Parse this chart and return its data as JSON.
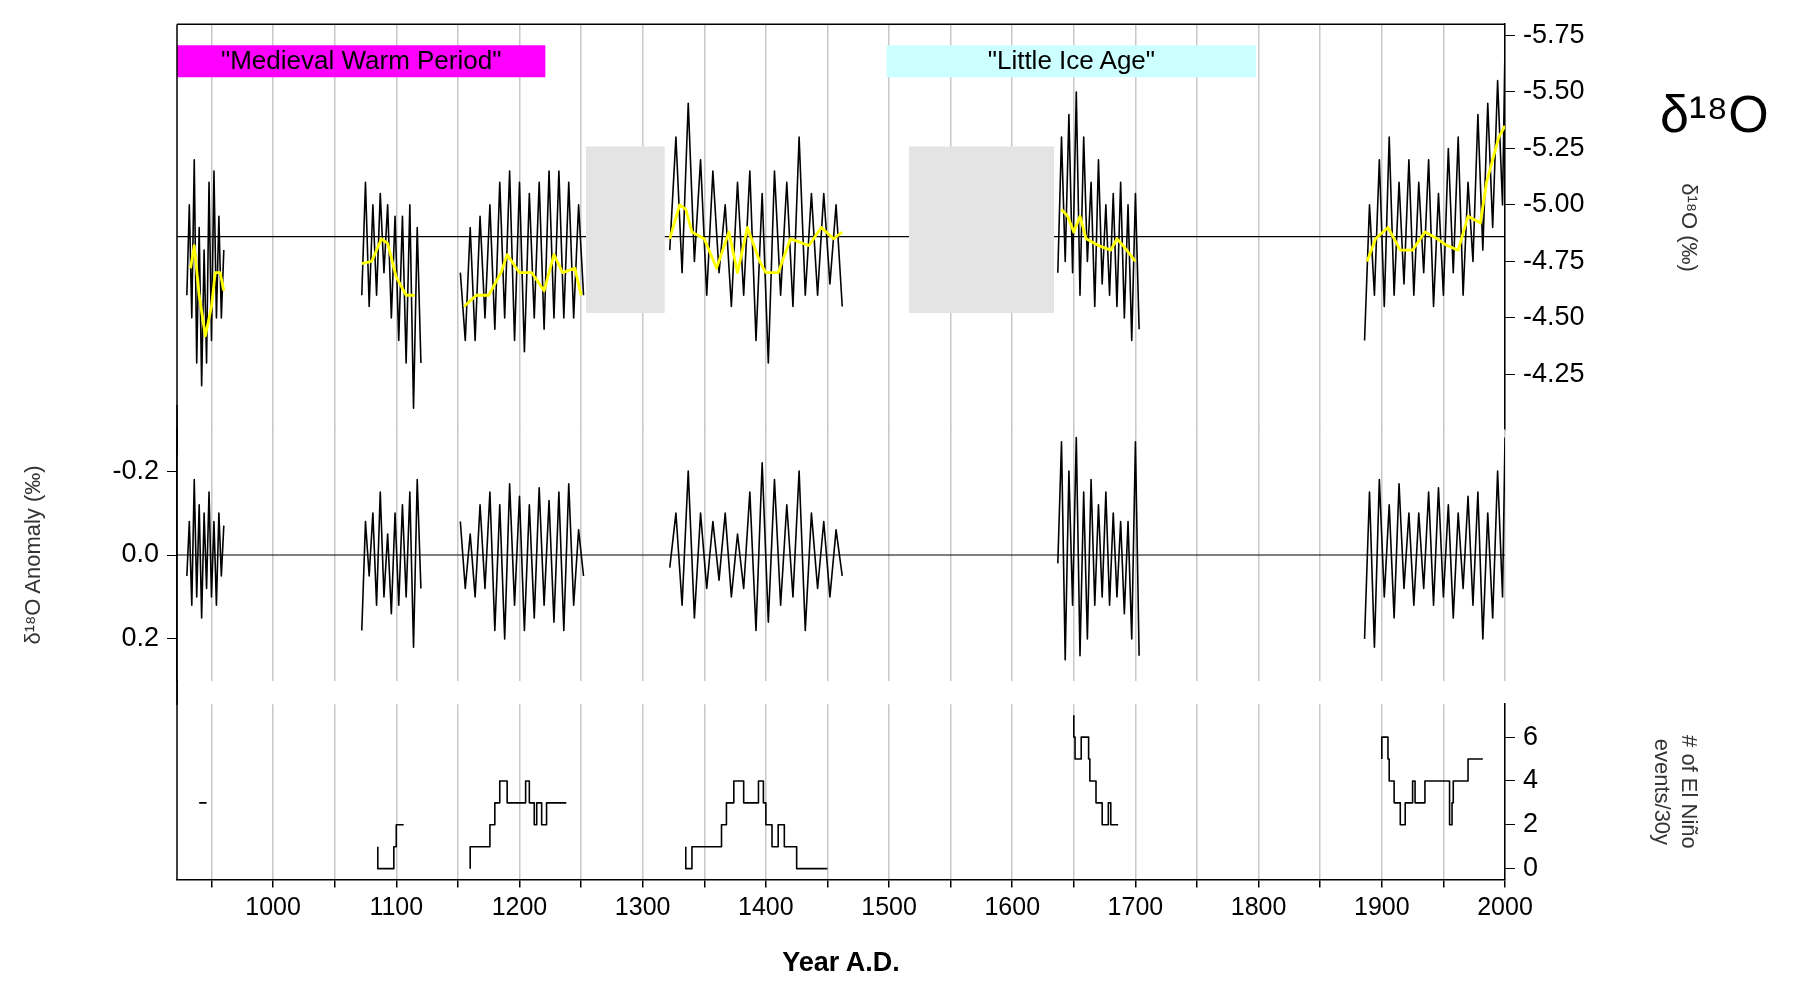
{
  "chart_data": [
    {
      "type": "line",
      "y2label": "δ¹⁸O (‰)",
      "annotations": [
        "δ¹⁸O"
      ],
      "legend": false,
      "grid": "x",
      "tick_labels": "y",
      "marker": "none",
      "x": [
        930,
        932,
        934,
        936,
        938,
        940,
        942,
        944,
        946,
        948,
        950,
        952,
        954,
        956,
        958,
        960,
        1000,
        1072,
        1075,
        1078,
        1081,
        1084,
        1087,
        1090,
        1093,
        1096,
        1099,
        1102,
        1105,
        1108,
        1111,
        1114,
        1117,
        1120,
        1135,
        1152,
        1156,
        1160,
        1164,
        1168,
        1172,
        1176,
        1180,
        1184,
        1188,
        1192,
        1196,
        1200,
        1204,
        1208,
        1212,
        1216,
        1220,
        1224,
        1228,
        1232,
        1236,
        1240,
        1244,
        1248,
        1252,
        1285,
        1322,
        1327,
        1332,
        1337,
        1342,
        1347,
        1352,
        1357,
        1362,
        1367,
        1372,
        1377,
        1382,
        1387,
        1392,
        1397,
        1402,
        1407,
        1412,
        1417,
        1422,
        1427,
        1432,
        1437,
        1442,
        1447,
        1452,
        1457,
        1462,
        1550,
        1637,
        1640,
        1643,
        1646,
        1649,
        1652,
        1655,
        1658,
        1661,
        1664,
        1667,
        1670,
        1673,
        1676,
        1679,
        1682,
        1685,
        1688,
        1691,
        1694,
        1697,
        1700,
        1703,
        1800,
        1886,
        1890,
        1894,
        1898,
        1902,
        1906,
        1910,
        1914,
        1918,
        1922,
        1926,
        1930,
        1934,
        1938,
        1942,
        1946,
        1950,
        1954,
        1958,
        1962,
        1966,
        1970,
        1974,
        1978,
        1982,
        1986,
        1990,
        1994,
        1998,
        2000
      ],
      "series": [
        {
          "color": "#000000",
          "axis": "y2",
          "values": [
            -4.6,
            -5.0,
            -4.5,
            -5.2,
            -4.3,
            -4.9,
            -4.2,
            -4.8,
            -4.3,
            -5.1,
            -4.4,
            -5.15,
            -4.5,
            -4.95,
            -4.5,
            -4.8,
            null,
            -4.6,
            -5.1,
            -4.55,
            -5.0,
            -4.6,
            -5.05,
            -4.7,
            -5.0,
            -4.5,
            -4.95,
            -4.4,
            -4.95,
            -4.3,
            -5.0,
            -4.1,
            -4.9,
            -4.3,
            null,
            -4.7,
            -4.4,
            -4.9,
            -4.4,
            -4.95,
            -4.5,
            -5.0,
            -4.45,
            -5.1,
            -4.5,
            -5.15,
            -4.4,
            -5.1,
            -4.35,
            -5.05,
            -4.5,
            -5.1,
            -4.45,
            -5.15,
            -4.5,
            -5.15,
            -4.5,
            -5.1,
            -4.5,
            -5.0,
            -4.6,
            null,
            -4.8,
            -5.3,
            -4.7,
            -5.45,
            -4.75,
            -5.2,
            -4.6,
            -5.15,
            -4.7,
            -5.0,
            -4.55,
            -5.1,
            -4.6,
            -5.15,
            -4.4,
            -5.05,
            -4.3,
            -5.15,
            -4.6,
            -5.1,
            -4.55,
            -5.3,
            -4.6,
            -5.05,
            -4.6,
            -5.05,
            -4.65,
            -5.0,
            -4.55,
            null,
            -4.7,
            -5.3,
            -4.75,
            -5.4,
            -4.7,
            -5.5,
            -4.6,
            -5.3,
            -4.75,
            -5.1,
            -4.55,
            -5.2,
            -4.65,
            -5.0,
            -4.6,
            -5.05,
            -4.55,
            -5.1,
            -4.5,
            -5.0,
            -4.4,
            -5.05,
            -4.45,
            null,
            -4.4,
            -5.0,
            -4.6,
            -5.2,
            -4.55,
            -5.3,
            -4.6,
            -5.1,
            -4.65,
            -5.2,
            -4.6,
            -5.1,
            -4.7,
            -5.2,
            -4.55,
            -5.05,
            -4.6,
            -5.25,
            -4.7,
            -5.3,
            -4.6,
            -5.1,
            -4.75,
            -5.4,
            -4.8,
            -5.45,
            -4.9,
            -5.55,
            -5.0,
            -5.7
          ]
        },
        {
          "color": "#ffff00",
          "axis": "y2",
          "x": [
            933,
            936,
            940,
            945,
            950,
            953,
            957,
            960,
            1000,
            1072,
            1080,
            1088,
            1093,
            1100,
            1108,
            1115,
            1135,
            1155,
            1165,
            1175,
            1185,
            1190,
            1200,
            1210,
            1220,
            1228,
            1235,
            1245,
            1250,
            1285,
            1322,
            1330,
            1335,
            1340,
            1350,
            1360,
            1370,
            1377,
            1385,
            1395,
            1400,
            1410,
            1420,
            1435,
            1445,
            1455,
            1462,
            1550,
            1640,
            1645,
            1650,
            1655,
            1660,
            1670,
            1680,
            1685,
            1690,
            1700,
            1800,
            1888,
            1895,
            1905,
            1915,
            1925,
            1935,
            1945,
            1953,
            1962,
            1970,
            1980,
            1985,
            1990,
            1995,
            2000
          ],
          "values": [
            -4.72,
            -4.82,
            -4.6,
            -4.42,
            -4.55,
            -4.7,
            -4.7,
            -4.62,
            null,
            -4.74,
            -4.75,
            -4.85,
            -4.83,
            -4.68,
            -4.6,
            -4.6,
            null,
            -4.55,
            -4.6,
            -4.6,
            -4.7,
            -4.78,
            -4.7,
            -4.7,
            -4.62,
            -4.78,
            -4.7,
            -4.72,
            -4.6,
            null,
            -4.85,
            -5.0,
            -4.98,
            -4.88,
            -4.85,
            -4.72,
            -4.88,
            -4.7,
            -4.9,
            -4.75,
            -4.7,
            -4.7,
            -4.85,
            -4.82,
            -4.9,
            -4.85,
            -4.88,
            null,
            -4.98,
            -4.95,
            -4.88,
            -4.95,
            -4.85,
            -4.82,
            -4.8,
            -4.85,
            -4.82,
            -4.75,
            null,
            -4.75,
            -4.85,
            -4.9,
            -4.8,
            -4.8,
            -4.88,
            -4.85,
            -4.82,
            -4.8,
            -4.95,
            -4.92,
            -5.1,
            -5.2,
            -5.3,
            -5.35
          ]
        }
      ],
      "xlim": [
        922,
        2000
      ],
      "xticks": [
        {
          "value": 950,
          "label": null
        },
        1000,
        {
          "value": 1050,
          "label": null
        },
        1100,
        {
          "value": 1150,
          "label": null
        },
        1200,
        {
          "value": 1250,
          "label": null
        },
        1300,
        {
          "value": 1350,
          "label": null
        },
        1400,
        {
          "value": 1450,
          "label": null
        },
        1500,
        {
          "value": 1550,
          "label": null
        },
        1600,
        {
          "value": 1650,
          "label": null
        },
        1700,
        {
          "value": 1750,
          "label": null
        },
        1800,
        {
          "value": 1850,
          "label": null
        },
        1900,
        {
          "value": 1950,
          "label": null
        },
        2000
      ],
      "y2lim": [
        -4.0,
        -5.8
      ],
      "y2ticks": [
        {
          "value": -5.75,
          "label": "-5.75"
        },
        {
          "value": -5.5,
          "label": "-5.50"
        },
        {
          "value": -5.25,
          "label": "-5.25"
        },
        {
          "value": -5,
          "label": "-5.00"
        },
        {
          "value": -4.75,
          "label": "-4.75"
        },
        {
          "value": -4.5,
          "label": "-4.50"
        },
        {
          "value": -4.25,
          "label": "-4.25"
        }
      ],
      "ref_lines": [
        {
          "axis": "y2",
          "value": -4.86,
          "color": "#000000"
        }
      ],
      "bands": [
        {
          "axis": "x",
          "from": 922,
          "to": 1221,
          "label": "\"Medieval Warm Period\"",
          "color": "#ff00ff"
        },
        {
          "axis": "x",
          "from": 1498,
          "to": 1798,
          "label": "\"Little Ice Age\"",
          "color": "#ccffff"
        },
        {
          "axis": "x",
          "from": 1254,
          "to": 1318,
          "color": "#e4e4e4"
        },
        {
          "axis": "x",
          "from": 1516,
          "to": 1634,
          "color": "#e4e4e4"
        }
      ]
    },
    {
      "type": "line",
      "ylabel": "δ¹⁸O Anomaly (‰)",
      "legend": false,
      "grid": "x",
      "tick_labels": "y",
      "marker": "none",
      "x": [
        930,
        932,
        934,
        936,
        938,
        940,
        942,
        944,
        946,
        948,
        950,
        952,
        954,
        956,
        958,
        960,
        1000,
        1072,
        1075,
        1078,
        1081,
        1084,
        1087,
        1090,
        1093,
        1096,
        1099,
        1102,
        1105,
        1108,
        1111,
        1114,
        1117,
        1120,
        1135,
        1152,
        1156,
        1160,
        1164,
        1168,
        1172,
        1176,
        1180,
        1184,
        1188,
        1192,
        1196,
        1200,
        1204,
        1208,
        1212,
        1216,
        1220,
        1224,
        1228,
        1232,
        1236,
        1240,
        1244,
        1248,
        1252,
        1285,
        1322,
        1327,
        1332,
        1337,
        1342,
        1347,
        1352,
        1357,
        1362,
        1367,
        1372,
        1377,
        1382,
        1387,
        1392,
        1397,
        1402,
        1407,
        1412,
        1417,
        1422,
        1427,
        1432,
        1437,
        1442,
        1447,
        1452,
        1457,
        1462,
        1550,
        1637,
        1640,
        1643,
        1646,
        1649,
        1652,
        1655,
        1658,
        1661,
        1664,
        1667,
        1670,
        1673,
        1676,
        1679,
        1682,
        1685,
        1688,
        1691,
        1694,
        1697,
        1700,
        1703,
        1800,
        1886,
        1890,
        1894,
        1898,
        1902,
        1906,
        1910,
        1914,
        1918,
        1922,
        1926,
        1930,
        1934,
        1938,
        1942,
        1946,
        1950,
        1954,
        1958,
        1962,
        1966,
        1970,
        1974,
        1978,
        1982,
        1986,
        1990,
        1994,
        1998,
        2000
      ],
      "series": [
        {
          "color": "#000000",
          "values": [
            0.05,
            -0.08,
            0.12,
            -0.18,
            0.1,
            -0.12,
            0.15,
            -0.1,
            0.08,
            -0.15,
            0.1,
            -0.08,
            0.12,
            -0.1,
            0.05,
            -0.07,
            null,
            0.18,
            -0.08,
            0.05,
            -0.1,
            0.12,
            -0.15,
            0.1,
            -0.05,
            0.14,
            -0.1,
            0.12,
            -0.12,
            0.1,
            -0.15,
            0.22,
            -0.18,
            0.08,
            null,
            -0.08,
            0.08,
            -0.05,
            0.1,
            -0.12,
            0.08,
            -0.15,
            0.18,
            -0.12,
            0.2,
            -0.17,
            0.12,
            -0.14,
            0.18,
            -0.12,
            0.15,
            -0.16,
            0.12,
            -0.13,
            0.16,
            -0.15,
            0.18,
            -0.17,
            0.12,
            -0.06,
            0.05,
            null,
            0.03,
            -0.1,
            0.12,
            -0.2,
            0.15,
            -0.1,
            0.08,
            -0.08,
            0.06,
            -0.1,
            0.1,
            -0.05,
            0.08,
            -0.15,
            0.18,
            -0.22,
            0.16,
            -0.18,
            0.12,
            -0.12,
            0.1,
            -0.2,
            0.18,
            -0.1,
            0.08,
            -0.08,
            0.1,
            -0.06,
            0.05,
            null,
            0.02,
            -0.27,
            0.25,
            -0.2,
            0.12,
            -0.28,
            0.24,
            -0.15,
            0.2,
            -0.18,
            0.12,
            -0.12,
            0.1,
            -0.15,
            0.12,
            -0.1,
            0.1,
            -0.08,
            0.14,
            -0.08,
            0.2,
            -0.27,
            0.24,
            null,
            0.2,
            -0.15,
            0.22,
            -0.18,
            0.1,
            -0.12,
            0.15,
            -0.17,
            0.08,
            -0.1,
            0.12,
            -0.1,
            0.08,
            -0.15,
            0.12,
            -0.16,
            0.1,
            -0.12,
            0.15,
            -0.1,
            0.08,
            -0.14,
            0.12,
            -0.15,
            0.2,
            -0.1,
            0.15,
            -0.2,
            0.1,
            -0.28
          ]
        }
      ],
      "xlim": [
        922,
        2000
      ],
      "xticks": [
        {
          "value": 950,
          "label": null
        },
        1000,
        {
          "value": 1050,
          "label": null
        },
        1100,
        {
          "value": 1150,
          "label": null
        },
        1200,
        {
          "value": 1250,
          "label": null
        },
        1300,
        {
          "value": 1350,
          "label": null
        },
        1400,
        {
          "value": 1450,
          "label": null
        },
        1500,
        {
          "value": 1550,
          "label": null
        },
        1600,
        {
          "value": 1650,
          "label": null
        },
        1700,
        {
          "value": 1750,
          "label": null
        },
        1800,
        {
          "value": 1850,
          "label": null
        },
        1900,
        {
          "value": 1950,
          "label": null
        },
        2000
      ],
      "ylim": [
        0.3,
        -0.3
      ],
      "yticks": [
        {
          "value": -0.2,
          "label": "-0.2"
        },
        {
          "value": 0,
          "label": "0.0"
        },
        {
          "value": 0.2,
          "label": "0.2"
        }
      ],
      "ref_lines": [
        {
          "axis": "y",
          "value": 0,
          "color": "#000000"
        }
      ]
    },
    {
      "type": "step",
      "xlabel": "Year A.D.",
      "y2label": "# of El Niño events/30y",
      "legend": false,
      "grid": "x",
      "marker": "none",
      "x": [
        940,
        946,
        950,
        1085,
        1098,
        1100,
        1103,
        1106,
        1110,
        1160,
        1176,
        1180,
        1184,
        1190,
        1205,
        1208,
        1212,
        1214,
        1218,
        1222,
        1228,
        1238,
        1245,
        1335,
        1340,
        1364,
        1368,
        1374,
        1382,
        1394,
        1398,
        1400,
        1405,
        1410,
        1415,
        1425,
        1450,
        1452,
        1650,
        1651,
        1656,
        1662,
        1663,
        1668,
        1673,
        1678,
        1680,
        1681,
        1686,
        1690,
        1900,
        1905,
        1906,
        1910,
        1915,
        1919,
        1925,
        1927,
        1935,
        1955,
        1957,
        1958,
        1970,
        1980,
        1982
      ],
      "series": [
        {
          "color": "#000000",
          "axis": "y2",
          "values": [
            3,
            3,
            null,
            1,
            0,
            1,
            2,
            2,
            null,
            0,
            1,
            2,
            3,
            4,
            3,
            4,
            3,
            2,
            3,
            2,
            3,
            3,
            null,
            1,
            0,
            1,
            2,
            3,
            4,
            3,
            4,
            3,
            2,
            1,
            2,
            1,
            0,
            null,
            7,
            6,
            5,
            6,
            5,
            4,
            3,
            2,
            3,
            2,
            2,
            null,
            5,
            6,
            5,
            4,
            3,
            2,
            3,
            4,
            3,
            4,
            2,
            3,
            4,
            5,
            5
          ]
        }
      ],
      "xlim": [
        922,
        2000
      ],
      "xticks": [
        {
          "value": 950,
          "label": null
        },
        1000,
        {
          "value": 1050,
          "label": null
        },
        1100,
        {
          "value": 1150,
          "label": null
        },
        1200,
        {
          "value": 1250,
          "label": null
        },
        1300,
        {
          "value": 1350,
          "label": null
        },
        1400,
        {
          "value": 1450,
          "label": null
        },
        1500,
        {
          "value": 1550,
          "label": null
        },
        1600,
        {
          "value": 1650,
          "label": null
        },
        1700,
        {
          "value": 1750,
          "label": null
        },
        1800,
        {
          "value": 1850,
          "label": null
        },
        1900,
        {
          "value": 1950,
          "label": null
        },
        2000
      ],
      "y2lim": [
        -0.5,
        7.5
      ],
      "y2ticks": [
        0,
        2,
        4,
        6
      ]
    }
  ]
}
